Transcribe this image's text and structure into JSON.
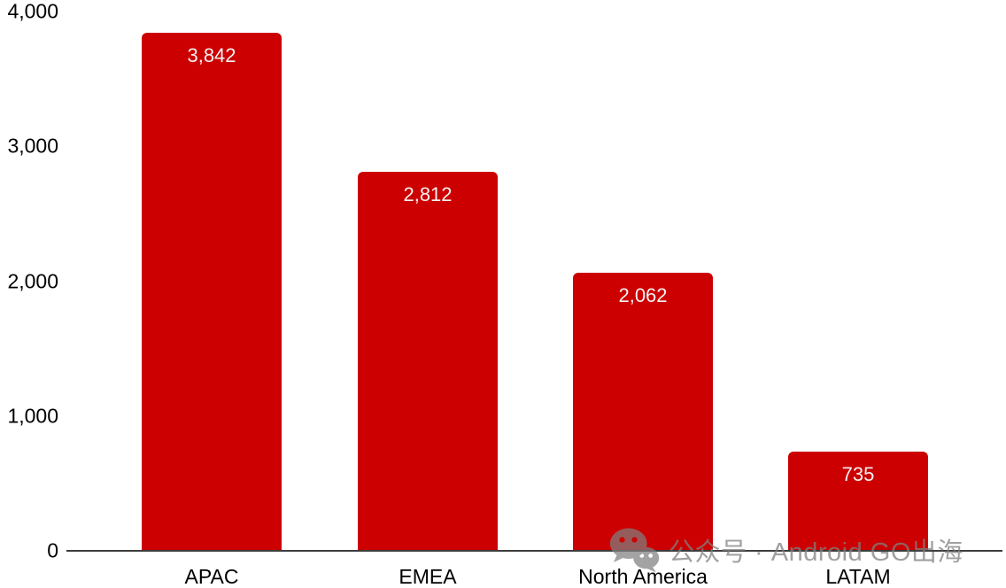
{
  "chart_data": {
    "type": "bar",
    "title": "",
    "xlabel": "",
    "ylabel": "",
    "categories": [
      "APAC",
      "EMEA",
      "North America",
      "LATAM"
    ],
    "values": [
      3842,
      2812,
      2062,
      735
    ],
    "value_labels": [
      "3,842",
      "2,812",
      "2,062",
      "735"
    ],
    "ylim": [
      0,
      4000
    ],
    "y_ticks": [
      {
        "value": 0,
        "label": "0"
      },
      {
        "value": 1000,
        "label": "1,000"
      },
      {
        "value": 2000,
        "label": "2,000"
      },
      {
        "value": 3000,
        "label": "3,000"
      },
      {
        "value": 4000,
        "label": "4,000"
      }
    ],
    "grid": false,
    "legend_position": "none",
    "bar_color": "#cc0000",
    "value_label_color": "#f2f2f2",
    "axis_line_color": "#3d3d3d",
    "tick_label_color": "#000000"
  },
  "watermark": {
    "icon": "wechat-icon",
    "text": "公众号 · Android GO出海",
    "color": "rgba(128,128,128,0.75)"
  }
}
